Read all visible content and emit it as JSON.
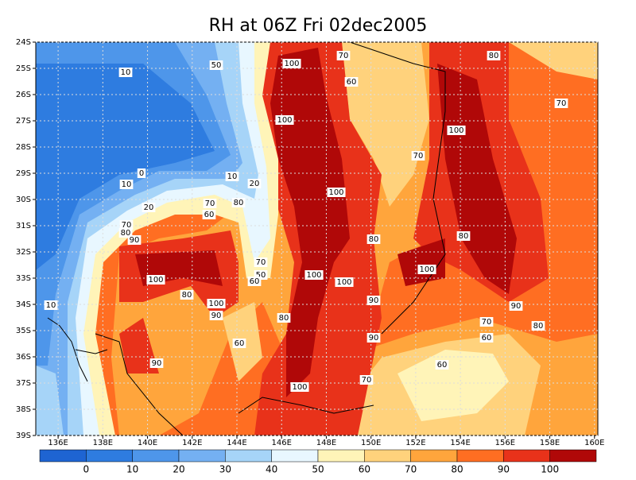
{
  "title": "RH at 06Z Fri 02dec2005",
  "map": {
    "xlim": [
      135,
      160.15
    ],
    "ylim": [
      -24,
      -39
    ],
    "xticks": [
      {
        "value": 136,
        "label": "136E"
      },
      {
        "value": 138,
        "label": "138E"
      },
      {
        "value": 140,
        "label": "140E"
      },
      {
        "value": 142,
        "label": "142E"
      },
      {
        "value": 144,
        "label": "144E"
      },
      {
        "value": 146,
        "label": "146E"
      },
      {
        "value": 148,
        "label": "148E"
      },
      {
        "value": 150,
        "label": "150E"
      },
      {
        "value": 152,
        "label": "152E"
      },
      {
        "value": 154,
        "label": "154E"
      },
      {
        "value": 156,
        "label": "156E"
      },
      {
        "value": 158,
        "label": "158E"
      },
      {
        "value": 160,
        "label": "160E"
      }
    ],
    "yticks": [
      {
        "value": -24,
        "label": "24S"
      },
      {
        "value": -25,
        "label": "25S"
      },
      {
        "value": -26,
        "label": "26S"
      },
      {
        "value": -27,
        "label": "27S"
      },
      {
        "value": -28,
        "label": "28S"
      },
      {
        "value": -29,
        "label": "29S"
      },
      {
        "value": -30,
        "label": "30S"
      },
      {
        "value": -31,
        "label": "31S"
      },
      {
        "value": -32,
        "label": "32S"
      },
      {
        "value": -33,
        "label": "33S"
      },
      {
        "value": -34,
        "label": "34S"
      },
      {
        "value": -35,
        "label": "35S"
      },
      {
        "value": -36,
        "label": "36S"
      },
      {
        "value": -37,
        "label": "37S"
      },
      {
        "value": -38,
        "label": "38S"
      },
      {
        "value": -39,
        "label": "39S"
      }
    ],
    "grid": true,
    "contour_labels": [
      "50",
      "100",
      "70",
      "80",
      "10",
      "60",
      "100",
      "100",
      "70",
      "70",
      "0",
      "10",
      "10",
      "20",
      "100",
      "70",
      "80",
      "20",
      "60",
      "70",
      "80",
      "90",
      "80",
      "80",
      "100",
      "70",
      "50",
      "60",
      "100",
      "100",
      "100",
      "10",
      "80",
      "100",
      "90",
      "90",
      "90",
      "80",
      "70",
      "80",
      "60",
      "90",
      "60",
      "90",
      "60",
      "70",
      "100"
    ]
  },
  "colorbar": {
    "colors": [
      "#1e64d2",
      "#2e7ce0",
      "#4e96ea",
      "#74b0f2",
      "#a6d4f8",
      "#e8f7ff",
      "#fff4b8",
      "#ffd27c",
      "#ffa53c",
      "#ff6e22",
      "#e8321a",
      "#b00808"
    ],
    "labels": [
      0,
      10,
      20,
      30,
      40,
      50,
      60,
      70,
      80,
      90,
      100
    ]
  }
}
